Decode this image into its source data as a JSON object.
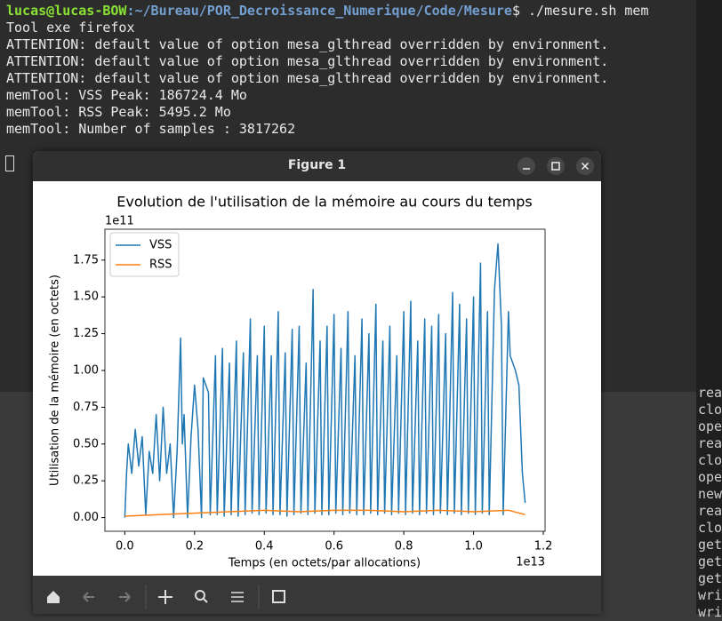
{
  "terminal": {
    "prompt": {
      "user": "lucas@lucas-BOW",
      "path": ":~/Bureau/POR_Decroissance_Numerique/Code/Mesure",
      "command": "$ ./mesure.sh mem"
    },
    "lines": [
      "Tool exe firefox",
      "ATTENTION: default value of option mesa_glthread overridden by environment.",
      "ATTENTION: default value of option mesa_glthread overridden by environment.",
      "ATTENTION: default value of option mesa_glthread overridden by environment.",
      "memTool: VSS Peak: 186724.4 Mo",
      "memTool: RSS Peak: 5495.2 Mo",
      "memTool: Number of samples : 3817262"
    ]
  },
  "side_terminal": {
    "lines": [
      "rea",
      "clo",
      "ope",
      "rea",
      "clo",
      "ope",
      "new",
      "rea",
      "clo",
      "get",
      "get",
      "get",
      "wri",
      "wri"
    ]
  },
  "window": {
    "title": "Figure 1"
  },
  "chart_data": {
    "type": "line",
    "title": "Evolution de l'utilisation de la mémoire au cours du temps",
    "x_label": "Temps (en octets/par allocations)",
    "y_label": "Utilisation de la mémoire (en octets)",
    "x_offset_label": "1e13",
    "y_offset_label": "1e11",
    "xlim": [
      -0.057,
      1.205
    ],
    "ylim": [
      -0.093,
      1.96
    ],
    "xticks": [
      {
        "value": 0,
        "label": "0.0"
      },
      0.2,
      0.4,
      0.6,
      0.8,
      {
        "value": 1,
        "label": "1.0"
      },
      1.2
    ],
    "yticks": [
      {
        "value": 0,
        "label": "0.00"
      },
      0.25,
      {
        "value": 0.5,
        "label": "0.50"
      },
      0.75,
      {
        "value": 1,
        "label": "1.00"
      },
      1.25,
      {
        "value": 1.5,
        "label": "1.50"
      },
      1.75
    ],
    "legend": "upper left",
    "series": [
      {
        "name": "VSS",
        "color": "#1f77b4",
        "x": [
          0,
          0.005,
          0.01,
          0.02,
          0.03,
          0.04,
          0.05,
          0.06,
          0.07,
          0.08,
          0.09,
          0.1,
          0.11,
          0.12,
          0.13,
          0.14,
          0.15,
          0.16,
          0.165,
          0.17,
          0.18,
          0.19,
          0.2,
          0.21,
          0.22,
          0.225,
          0.24,
          0.245,
          0.26,
          0.265,
          0.28,
          0.285,
          0.3,
          0.305,
          0.32,
          0.325,
          0.34,
          0.345,
          0.36,
          0.365,
          0.38,
          0.385,
          0.4,
          0.405,
          0.42,
          0.425,
          0.44,
          0.445,
          0.46,
          0.465,
          0.48,
          0.485,
          0.5,
          0.505,
          0.52,
          0.525,
          0.54,
          0.545,
          0.56,
          0.565,
          0.58,
          0.585,
          0.6,
          0.605,
          0.62,
          0.625,
          0.64,
          0.645,
          0.66,
          0.665,
          0.68,
          0.685,
          0.7,
          0.705,
          0.72,
          0.725,
          0.74,
          0.745,
          0.76,
          0.765,
          0.78,
          0.785,
          0.8,
          0.805,
          0.82,
          0.825,
          0.84,
          0.845,
          0.86,
          0.865,
          0.88,
          0.885,
          0.9,
          0.905,
          0.92,
          0.925,
          0.94,
          0.945,
          0.96,
          0.965,
          0.98,
          0.985,
          1,
          1.005,
          1.02,
          1.025,
          1.04,
          1.045,
          1.06,
          1.07,
          1.08,
          1.085,
          1.1,
          1.105,
          1.12,
          1.13,
          1.14,
          1.148
        ],
        "values": [
          0,
          0.3,
          0.5,
          0.3,
          0.6,
          0.35,
          0.55,
          0.02,
          0.45,
          0.3,
          0.7,
          0.25,
          0.75,
          0.3,
          0.5,
          0,
          0.45,
          1.22,
          0.5,
          0.7,
          0,
          0.55,
          0.9,
          0.6,
          0,
          0.95,
          0.85,
          0.02,
          1.1,
          0.02,
          1.15,
          0.01,
          1.05,
          0.02,
          1.2,
          0.01,
          1.12,
          0.02,
          1.35,
          0.03,
          1.1,
          0.02,
          1.3,
          0.03,
          1.1,
          0.02,
          1.4,
          0.02,
          1.12,
          0.01,
          1.28,
          0.02,
          1.3,
          0.03,
          1.05,
          0.02,
          1.55,
          0.03,
          1.2,
          0.02,
          1.3,
          0.02,
          1.38,
          0.03,
          1.15,
          0.02,
          1.4,
          0.03,
          1.1,
          0.02,
          1.35,
          0.02,
          1.25,
          0.03,
          1.45,
          0.02,
          1.2,
          0.03,
          1.3,
          0.02,
          1.1,
          0.03,
          1.4,
          0.02,
          1.47,
          0.03,
          1.2,
          0.02,
          1.35,
          0.03,
          1.3,
          0.02,
          1.38,
          0.03,
          1.25,
          0.02,
          1.53,
          0.03,
          1.45,
          0.02,
          1.35,
          0.03,
          1.5,
          0.02,
          1.73,
          0.03,
          1.4,
          0.02,
          1.55,
          1.86,
          1.3,
          0.02,
          1.4,
          1.1,
          1,
          0.9,
          0.3,
          0.1
        ]
      },
      {
        "name": "RSS",
        "color": "#ff7f0e",
        "x": [
          0,
          0.1,
          0.2,
          0.3,
          0.4,
          0.5,
          0.6,
          0.7,
          0.8,
          0.9,
          1,
          1.1,
          1.148
        ],
        "values": [
          0.01,
          0.02,
          0.03,
          0.04,
          0.05,
          0.04,
          0.05,
          0.05,
          0.04,
          0.05,
          0.04,
          0.05,
          0.02
        ]
      }
    ]
  }
}
